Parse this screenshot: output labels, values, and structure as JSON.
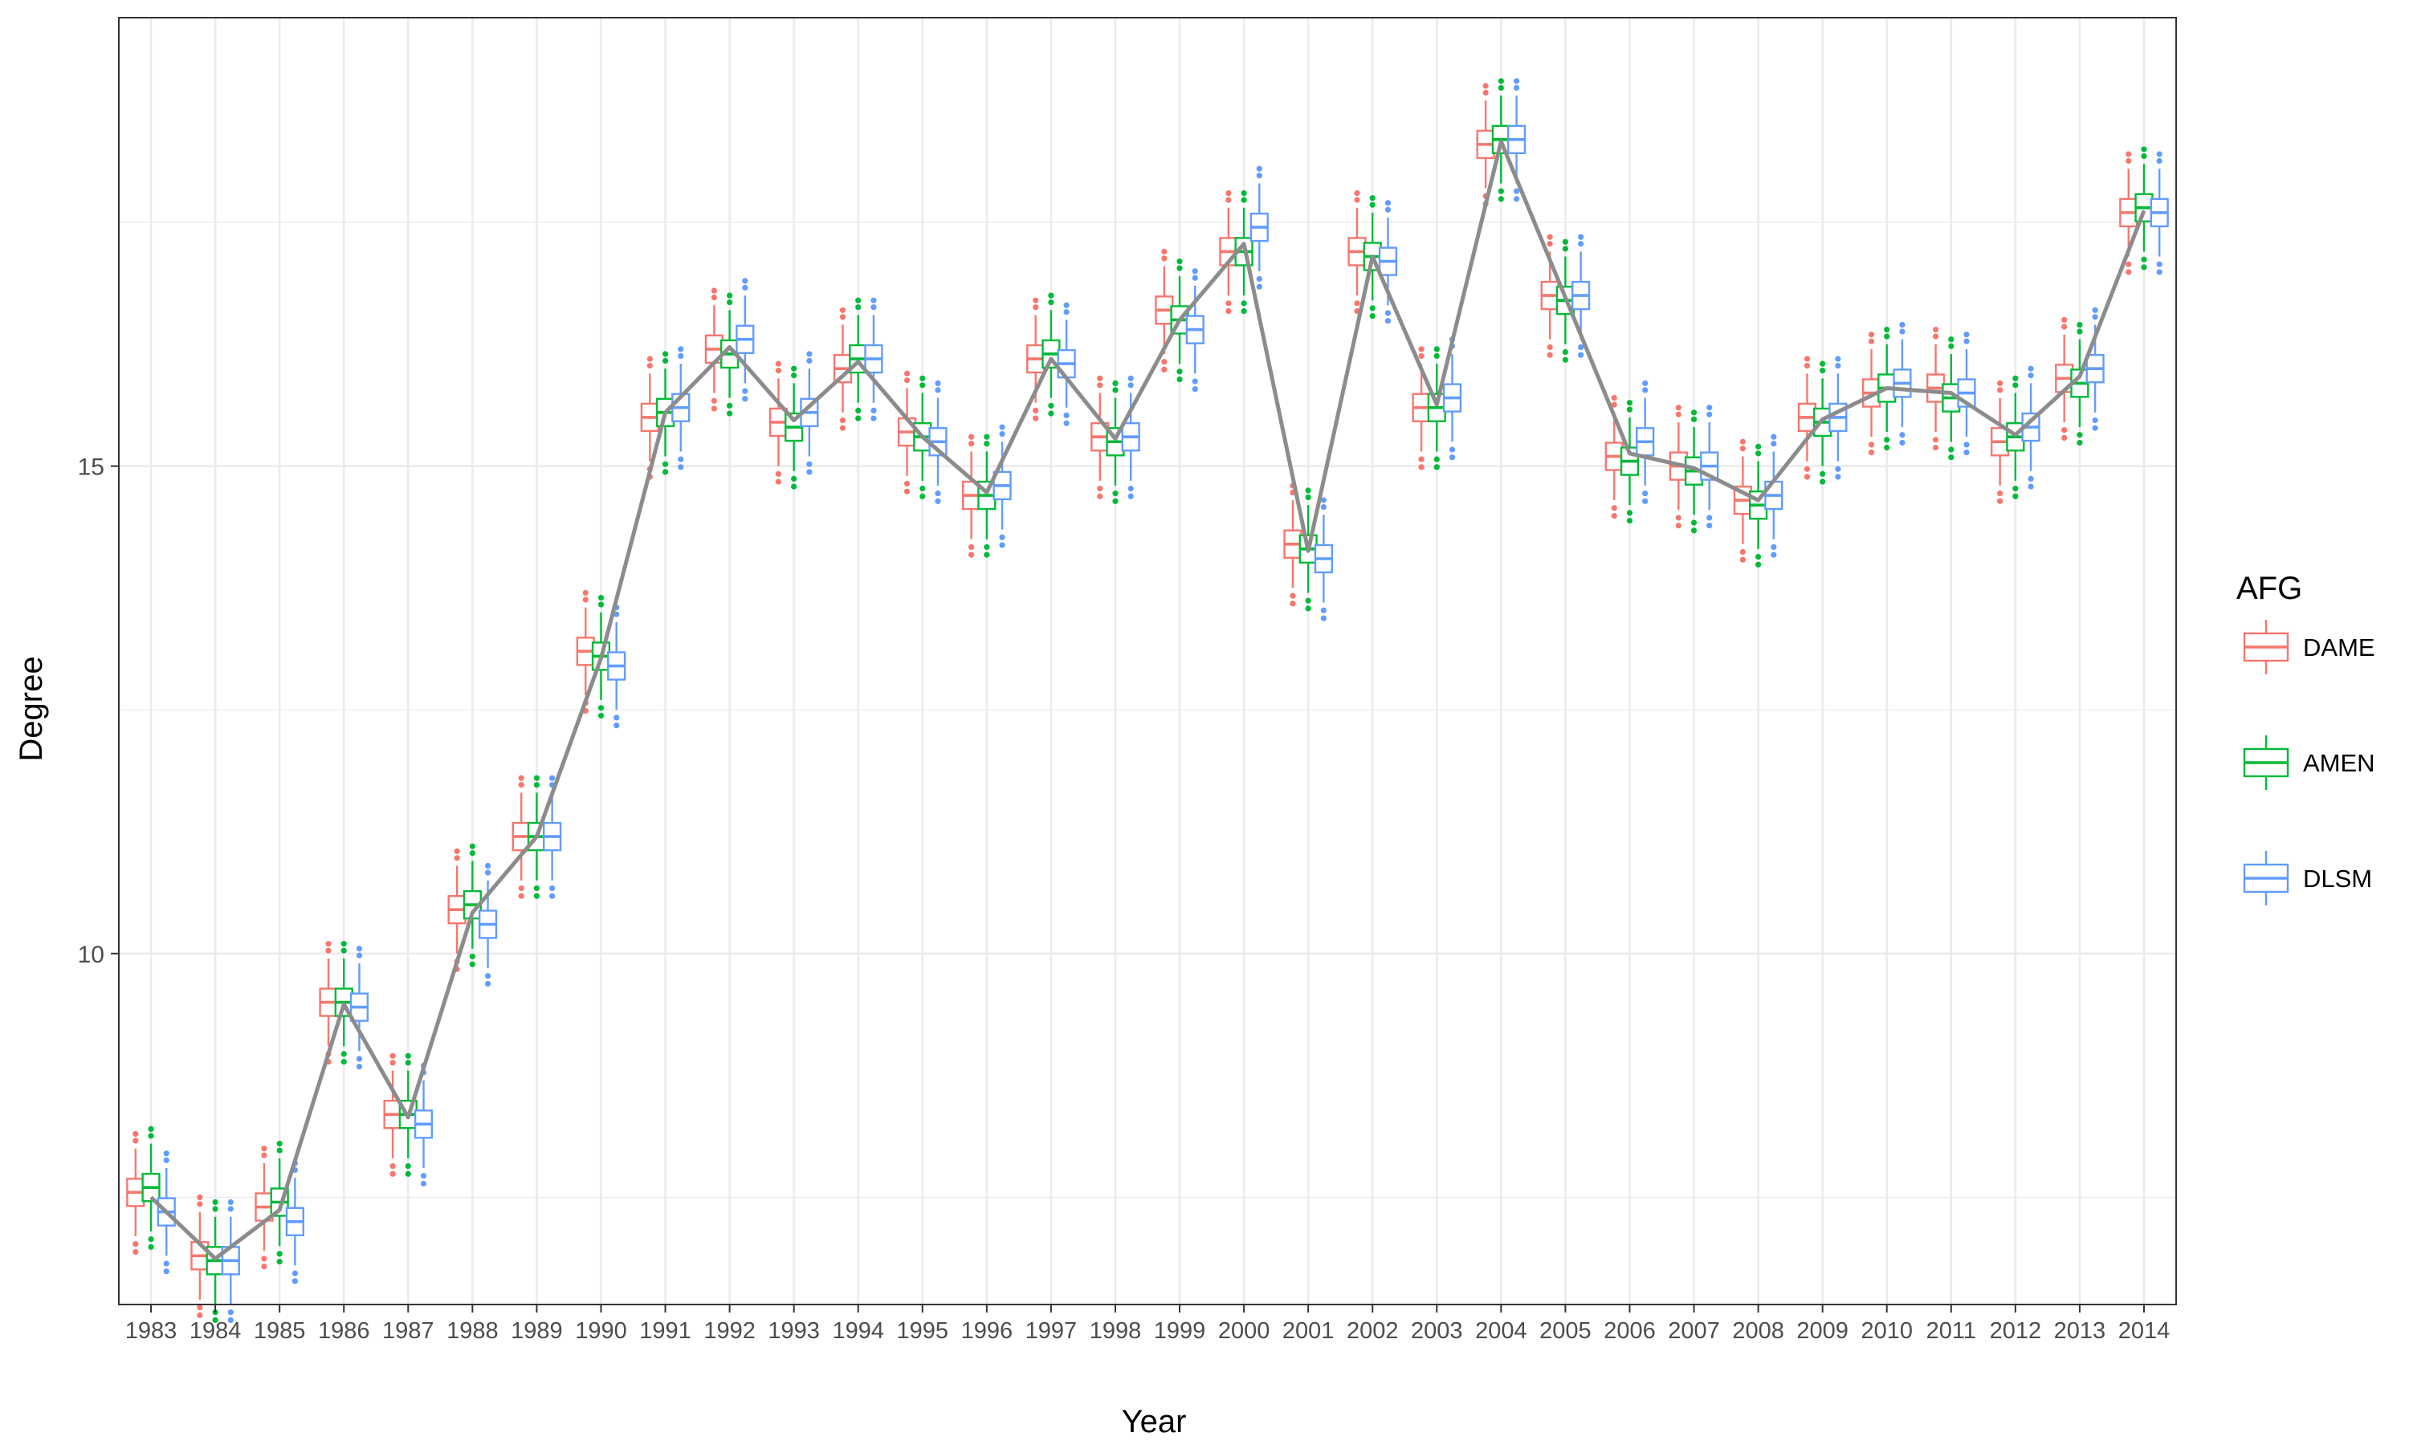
{
  "chart_data": {
    "type": "box",
    "xlabel": "Year",
    "ylabel": "Degree",
    "categories": [
      "1983",
      "1984",
      "1985",
      "1986",
      "1987",
      "1988",
      "1989",
      "1990",
      "1991",
      "1992",
      "1993",
      "1994",
      "1995",
      "1996",
      "1997",
      "1998",
      "1999",
      "2000",
      "2001",
      "2002",
      "2003",
      "2004",
      "2005",
      "2006",
      "2007",
      "2008",
      "2009",
      "2010",
      "2011",
      "2012",
      "2013",
      "2014"
    ],
    "yticks": [
      10,
      15
    ],
    "ylim": [
      6.4,
      19.6
    ],
    "grid": true,
    "legend": {
      "title": "AFG",
      "position": "right"
    },
    "series": [
      {
        "name": "DAME",
        "color": "#F8766D",
        "medians": [
          7.55,
          6.9,
          7.4,
          9.5,
          8.35,
          10.45,
          11.2,
          13.1,
          15.5,
          16.2,
          15.45,
          16.0,
          15.35,
          14.7,
          16.1,
          15.3,
          16.6,
          17.2,
          14.2,
          17.2,
          15.6,
          18.3,
          16.75,
          15.1,
          15.0,
          14.65,
          15.5,
          15.75,
          15.8,
          15.25,
          15.9,
          17.6
        ]
      },
      {
        "name": "AMEN",
        "color": "#00BA38",
        "medians": [
          7.6,
          6.85,
          7.45,
          9.5,
          8.35,
          10.5,
          11.2,
          13.05,
          15.55,
          16.15,
          15.4,
          16.1,
          15.3,
          14.7,
          16.15,
          15.25,
          16.5,
          17.2,
          14.15,
          17.15,
          15.6,
          18.35,
          16.7,
          15.05,
          14.95,
          14.6,
          15.45,
          15.8,
          15.7,
          15.3,
          15.85,
          17.65
        ]
      },
      {
        "name": "DLSM",
        "color": "#619CFF",
        "medians": [
          7.35,
          6.85,
          7.25,
          9.45,
          8.25,
          10.3,
          11.2,
          12.95,
          15.6,
          16.3,
          15.55,
          16.1,
          15.25,
          14.8,
          16.05,
          15.3,
          16.4,
          17.45,
          14.05,
          17.1,
          15.7,
          18.35,
          16.75,
          15.25,
          15.0,
          14.7,
          15.5,
          15.85,
          15.75,
          15.4,
          16.0,
          17.6
        ]
      }
    ],
    "mean_line": {
      "color": "#8c8c8c",
      "values": [
        7.5,
        6.87,
        7.37,
        9.48,
        8.32,
        10.42,
        11.2,
        13.03,
        15.55,
        16.22,
        15.47,
        16.07,
        15.3,
        14.73,
        16.1,
        15.28,
        16.5,
        17.28,
        14.13,
        17.15,
        15.63,
        18.33,
        16.73,
        15.13,
        14.98,
        14.65,
        15.48,
        15.8,
        15.75,
        15.32,
        15.92,
        17.62
      ]
    }
  }
}
